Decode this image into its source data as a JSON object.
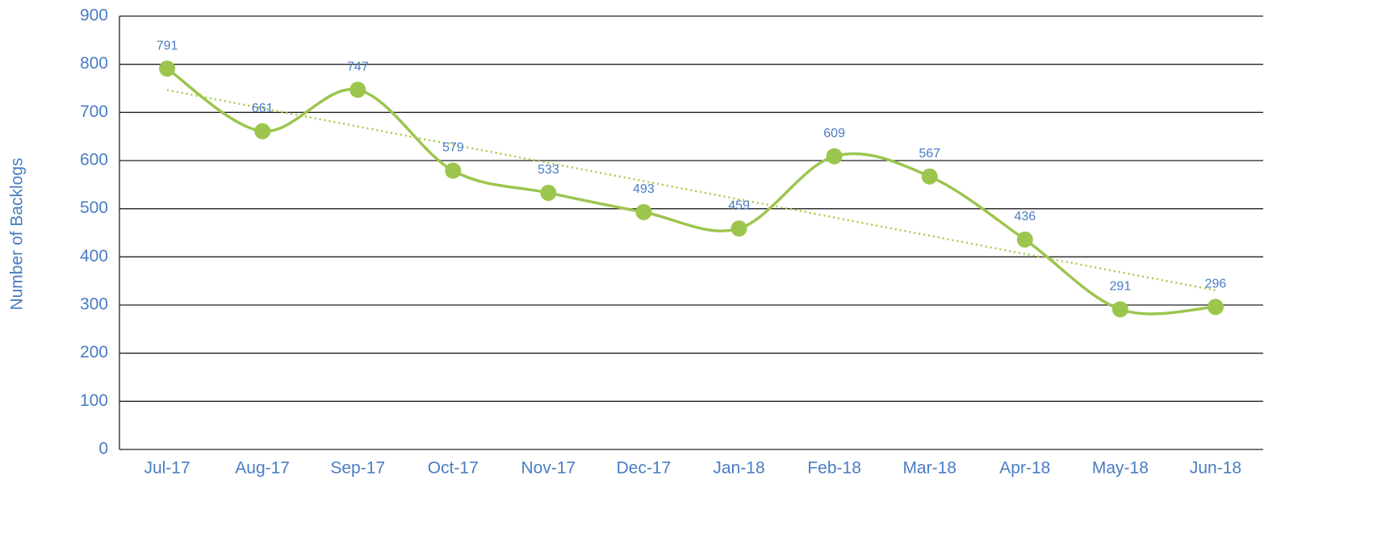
{
  "chart_data": {
    "type": "line",
    "y_label": "Number of Backlogs",
    "categories": [
      "Jul-17",
      "Aug-17",
      "Sep-17",
      "Oct-17",
      "Nov-17",
      "Dec-17",
      "Jan-18",
      "Feb-18",
      "Mar-18",
      "Apr-18",
      "May-18",
      "Jun-18"
    ],
    "series": [
      {
        "name": "Backlogs",
        "color": "#9cc54e",
        "values": [
          791,
          661,
          747,
          579,
          533,
          493,
          459,
          609,
          567,
          436,
          291,
          296
        ]
      }
    ],
    "ylim": [
      0,
      900
    ],
    "yticks": [
      0,
      100,
      200,
      300,
      400,
      500,
      600,
      700,
      800,
      900
    ],
    "grid": true,
    "smooth": true,
    "trendline": true,
    "trendline_color": "#a8c94a",
    "label_color": "#4a7cc4"
  }
}
